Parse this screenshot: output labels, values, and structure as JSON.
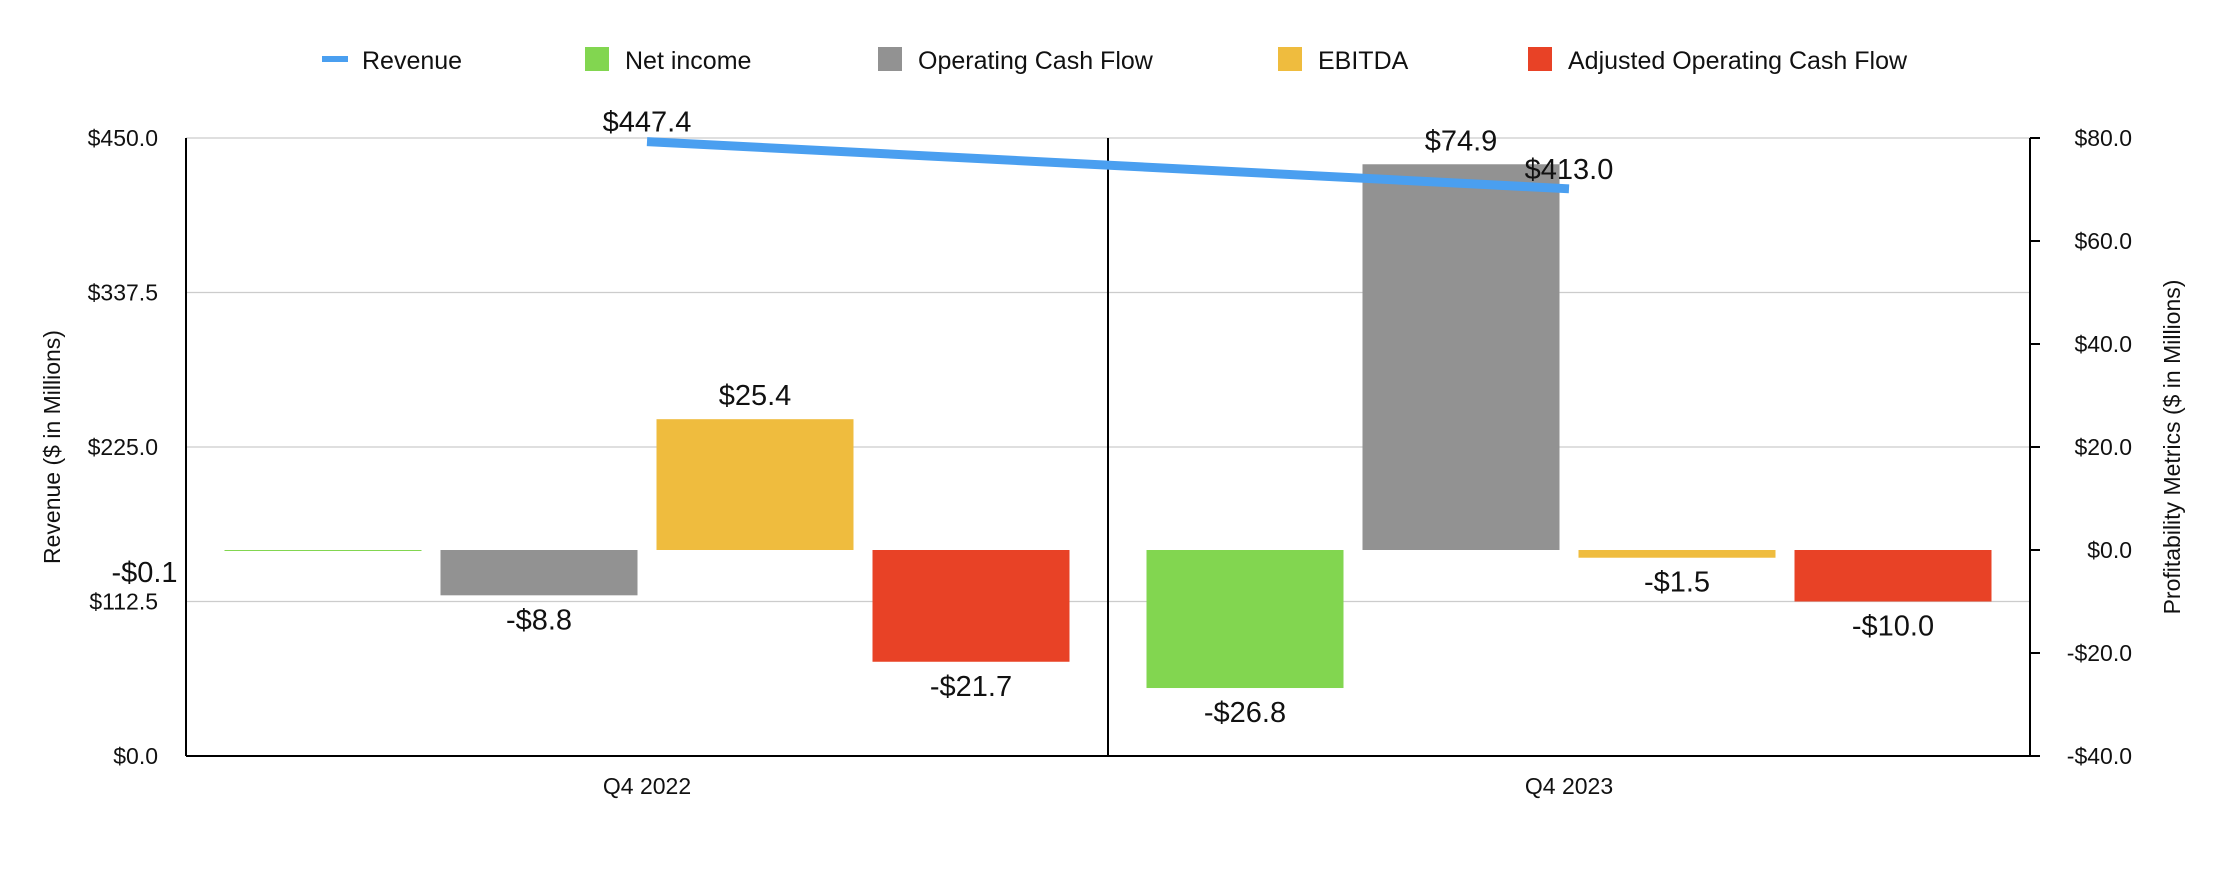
{
  "chart_data": {
    "type": "bar",
    "categories": [
      "Q4 2022",
      "Q4 2023"
    ],
    "line_series": {
      "name": "Revenue",
      "values": [
        447.4,
        413.0
      ],
      "labels": [
        "$447.4",
        "$413.0"
      ],
      "color": "#4a9ff0",
      "axis": "left"
    },
    "series": [
      {
        "name": "Net income",
        "values": [
          -0.1,
          -26.8
        ],
        "labels": [
          "-$0.1",
          "-$26.8"
        ],
        "color": "#82d650"
      },
      {
        "name": "Operating Cash Flow",
        "values": [
          -8.8,
          74.9
        ],
        "labels": [
          "-$8.8",
          "$74.9"
        ],
        "color": "#929292"
      },
      {
        "name": "EBITDA",
        "values": [
          25.4,
          -1.5
        ],
        "labels": [
          "$25.4",
          "-$1.5"
        ],
        "color": "#efbc3e"
      },
      {
        "name": "Adjusted Operating Cash Flow",
        "values": [
          -21.7,
          -10.0
        ],
        "labels": [
          "-$21.7",
          "-$10.0"
        ],
        "color": "#e84226"
      }
    ],
    "left_axis": {
      "label": "Revenue ($ in Millions)",
      "ylim": [
        0,
        450
      ],
      "ticks": [
        0,
        112.5,
        225,
        337.5,
        450
      ],
      "tick_labels": [
        "$0.0",
        "$112.5",
        "$225.0",
        "$337.5",
        "$450.0"
      ]
    },
    "right_axis": {
      "label": "Profitability Metrics ($ in Millions)",
      "ylim": [
        -40,
        80
      ],
      "ticks": [
        -40,
        -20,
        0,
        20,
        40,
        60,
        80
      ],
      "tick_labels": [
        "-$40.0",
        "-$20.0",
        "$0.0",
        "$20.0",
        "$40.0",
        "$60.0",
        "$80.0"
      ]
    },
    "legend": {
      "position": "top",
      "items": [
        {
          "name": "Revenue",
          "marker": "line",
          "color": "#4a9ff0"
        },
        {
          "name": "Net income",
          "marker": "square",
          "color": "#82d650"
        },
        {
          "name": "Operating Cash Flow",
          "marker": "square",
          "color": "#929292"
        },
        {
          "name": "EBITDA",
          "marker": "square",
          "color": "#efbc3e"
        },
        {
          "name": "Adjusted Operating Cash Flow",
          "marker": "square",
          "color": "#e84226"
        }
      ]
    },
    "grid": true,
    "gridline_color": "#cccccc",
    "axis_line_color": "#000000"
  }
}
